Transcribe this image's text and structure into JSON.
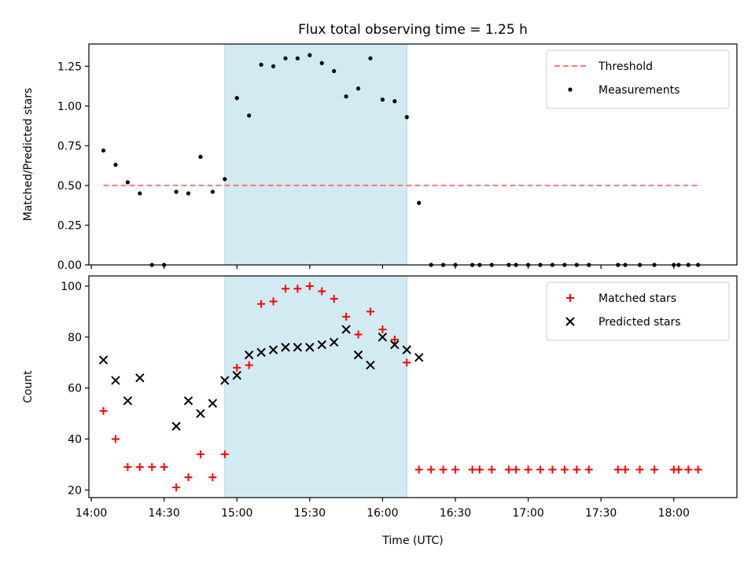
{
  "chart_data": {
    "type": "scatter",
    "title": "Flux total observing time = 1.25 h",
    "xlabel": "Time (UTC)",
    "x_tick_labels": [
      "14:00",
      "14:30",
      "15:00",
      "15:30",
      "16:00",
      "16:30",
      "17:00",
      "17:30",
      "18:00"
    ],
    "x_ticks": [
      "14:00",
      "14:30",
      "15:00",
      "15:30",
      "16:00",
      "16:30",
      "17:00",
      "17:30",
      "18:00"
    ],
    "xlim": [
      "13:59",
      "18:26"
    ],
    "colors": {
      "highlight": "#add8e6",
      "threshold": "#ff7777",
      "matched": "#ff0000",
      "predicted": "#000000",
      "measurements": "#000000"
    },
    "panels": [
      {
        "ylabel": "Matched/Predicted stars",
        "ylim": [
          0,
          1.39
        ],
        "y_ticks": [
          0.0,
          0.25,
          0.5,
          0.75,
          1.0,
          1.25
        ],
        "y_tick_labels": [
          "0.00",
          "0.25",
          "0.50",
          "0.75",
          "1.00",
          "1.25"
        ],
        "legend_position": "top-right",
        "highlight_span": [
          "14:55",
          "16:10"
        ],
        "threshold": {
          "name": "Threshold",
          "y": 0.5,
          "x_range": [
            "14:05",
            "18:10"
          ]
        },
        "series": [
          {
            "name": "Measurements",
            "marker": "dot",
            "x": [
              "14:05",
              "14:10",
              "14:15",
              "14:20",
              "14:25",
              "14:30",
              "14:35",
              "14:40",
              "14:45",
              "14:50",
              "14:55",
              "15:00",
              "15:05",
              "15:10",
              "15:15",
              "15:20",
              "15:25",
              "15:30",
              "15:35",
              "15:40",
              "15:45",
              "15:50",
              "15:55",
              "16:00",
              "16:05",
              "16:10",
              "16:15",
              "16:20",
              "16:25",
              "16:30",
              "16:37",
              "16:40",
              "16:45",
              "16:52",
              "16:55",
              "17:00",
              "17:05",
              "17:10",
              "17:15",
              "17:20",
              "17:25",
              "17:37",
              "17:40",
              "17:46",
              "17:52",
              "18:00",
              "18:02",
              "18:06",
              "18:10"
            ],
            "y": [
              0.72,
              0.63,
              0.52,
              0.45,
              0.0,
              0.0,
              0.46,
              0.45,
              0.68,
              0.46,
              0.54,
              1.05,
              0.94,
              1.26,
              1.25,
              1.3,
              1.3,
              1.32,
              1.27,
              1.22,
              1.06,
              1.11,
              1.3,
              1.04,
              1.03,
              0.93,
              0.39,
              0.0,
              0.0,
              0.0,
              0.0,
              0.0,
              0.0,
              0.0,
              0.0,
              0.0,
              0.0,
              0.0,
              0.0,
              0.0,
              0.0,
              0.0,
              0.0,
              0.0,
              0.0,
              0.0,
              0.0,
              0.0,
              0.0
            ]
          }
        ]
      },
      {
        "ylabel": "Count",
        "ylim": [
          17,
          104
        ],
        "y_ticks": [
          20,
          40,
          60,
          80,
          100
        ],
        "y_tick_labels": [
          "20",
          "40",
          "60",
          "80",
          "100"
        ],
        "legend_position": "top-right",
        "highlight_span": [
          "14:55",
          "16:10"
        ],
        "series": [
          {
            "name": "Matched stars",
            "marker": "plus",
            "x": [
              "14:05",
              "14:10",
              "14:15",
              "14:20",
              "14:25",
              "14:30",
              "14:35",
              "14:40",
              "14:45",
              "14:50",
              "14:55",
              "15:00",
              "15:05",
              "15:10",
              "15:15",
              "15:20",
              "15:25",
              "15:30",
              "15:35",
              "15:40",
              "15:45",
              "15:50",
              "15:55",
              "16:00",
              "16:05",
              "16:10",
              "16:15",
              "16:20",
              "16:25",
              "16:30",
              "16:37",
              "16:40",
              "16:45",
              "16:52",
              "16:55",
              "17:00",
              "17:05",
              "17:10",
              "17:15",
              "17:20",
              "17:25",
              "17:37",
              "17:40",
              "17:46",
              "17:52",
              "18:00",
              "18:02",
              "18:06",
              "18:10"
            ],
            "y": [
              51,
              40,
              29,
              29,
              29,
              29,
              21,
              25,
              34,
              25,
              34,
              68,
              69,
              93,
              94,
              99,
              99,
              100,
              98,
              95,
              88,
              81,
              90,
              83,
              79,
              70,
              28,
              28,
              28,
              28,
              28,
              28,
              28,
              28,
              28,
              28,
              28,
              28,
              28,
              28,
              28,
              28,
              28,
              28,
              28,
              28,
              28,
              28,
              28
            ]
          },
          {
            "name": "Predicted stars",
            "marker": "x",
            "x": [
              "14:05",
              "14:10",
              "14:15",
              "14:20",
              "14:35",
              "14:40",
              "14:45",
              "14:50",
              "14:55",
              "15:00",
              "15:05",
              "15:10",
              "15:15",
              "15:20",
              "15:25",
              "15:30",
              "15:35",
              "15:40",
              "15:45",
              "15:50",
              "15:55",
              "16:00",
              "16:05",
              "16:10",
              "16:15"
            ],
            "y": [
              71,
              63,
              55,
              64,
              45,
              55,
              50,
              54,
              63,
              65,
              73,
              74,
              75,
              76,
              76,
              76,
              77,
              78,
              83,
              73,
              69,
              80,
              77,
              75,
              72
            ]
          }
        ]
      }
    ]
  }
}
